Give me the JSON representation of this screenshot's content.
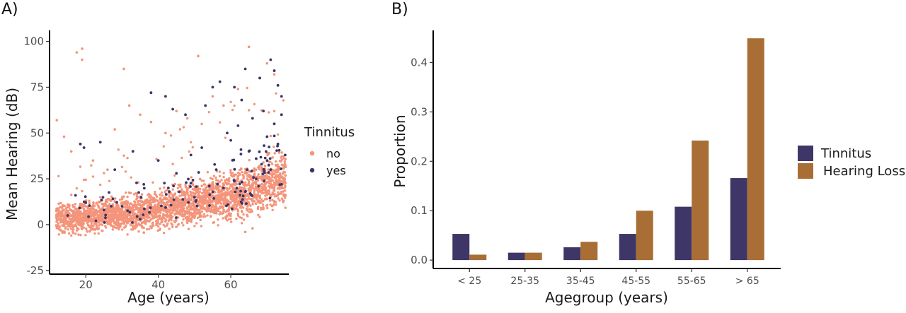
{
  "chart_data": [
    {
      "panel_label": "A)",
      "type": "scatter",
      "xlabel": "Age (years)",
      "ylabel": "Mean Hearing (dB)",
      "xlim": [
        10,
        76
      ],
      "ylim": [
        -27,
        106
      ],
      "xticks": [
        20,
        40,
        60
      ],
      "yticks": [
        -25,
        0,
        25,
        50,
        75,
        100
      ],
      "legend_title": "Tinnitus",
      "legend_position": "right",
      "grid": false,
      "colors": {
        "no": "#f4947a",
        "yes": "#3d3466"
      },
      "series": [
        {
          "name": "no",
          "color": "#f4947a",
          "points": [
            [
              17.5,
              94
            ],
            [
              19,
              96
            ],
            [
              19,
              90
            ],
            [
              30.5,
              85
            ],
            [
              51,
              92
            ],
            [
              65,
              97
            ],
            [
              32,
              65
            ],
            [
              35,
              60
            ],
            [
              45,
              62
            ],
            [
              55,
              70
            ],
            [
              58,
              65
            ],
            [
              62,
              74
            ],
            [
              68,
              80
            ],
            [
              70,
              88
            ],
            [
              72,
              82
            ],
            [
              12,
              57
            ],
            [
              14,
              48
            ],
            [
              16,
              40
            ],
            [
              22,
              35
            ],
            [
              26,
              30
            ],
            [
              28,
              52
            ],
            [
              38,
              56
            ],
            [
              42,
              50
            ],
            [
              48,
              58
            ],
            [
              64,
              -4
            ],
            [
              66,
              -2
            ]
          ]
        },
        {
          "name": "yes",
          "color": "#3d3466",
          "points": [
            [
              18.5,
              44
            ],
            [
              19.5,
              42
            ],
            [
              24,
              45
            ],
            [
              38,
              72
            ],
            [
              42,
              70
            ],
            [
              44,
              63
            ],
            [
              47.5,
              60
            ],
            [
              53,
              65
            ],
            [
              55,
              75
            ],
            [
              57,
              78
            ],
            [
              61,
              75
            ],
            [
              63,
              68
            ],
            [
              64,
              85
            ],
            [
              68,
              80
            ],
            [
              71,
              90
            ],
            [
              72,
              84
            ],
            [
              73,
              76
            ],
            [
              74,
              70
            ],
            [
              28,
              30
            ],
            [
              33,
              40
            ],
            [
              36,
              22
            ],
            [
              40,
              35
            ],
            [
              45,
              28
            ],
            [
              49,
              38
            ],
            [
              52,
              42
            ],
            [
              56,
              30
            ],
            [
              59,
              50
            ],
            [
              60,
              46
            ],
            [
              62,
              54
            ],
            [
              65,
              40
            ],
            [
              66,
              58
            ],
            [
              67,
              36
            ],
            [
              69,
              62
            ],
            [
              70,
              48
            ],
            [
              72,
              55
            ],
            [
              73,
              44
            ],
            [
              74,
              60
            ],
            [
              75,
              38
            ],
            [
              58,
              20
            ],
            [
              50,
              15
            ],
            [
              43,
              18
            ],
            [
              25,
              8
            ],
            [
              20,
              12
            ],
            [
              15,
              5
            ],
            [
              30,
              10
            ],
            [
              35,
              3
            ],
            [
              67,
              25
            ],
            [
              71,
              30
            ],
            [
              74,
              22
            ],
            [
              64,
              18
            ]
          ]
        }
      ],
      "trend_no": {
        "ages": [
          12,
          20,
          30,
          40,
          50,
          60,
          70,
          75
        ],
        "center": [
          3,
          4,
          6,
          8,
          12,
          16,
          22,
          26
        ],
        "spread": [
          7,
          7,
          8,
          9,
          10,
          12,
          13,
          14
        ]
      }
    },
    {
      "panel_label": "B)",
      "type": "bar",
      "xlabel": "Agegroup (years)",
      "ylabel": "Proportion",
      "ylim": [
        -0.017,
        0.465
      ],
      "yticks": [
        0.0,
        0.1,
        0.2,
        0.3,
        0.4
      ],
      "ytick_labels": [
        "0.0",
        "0.1",
        "0.2",
        "0.3",
        "0.4"
      ],
      "categories": [
        "< 25",
        "25-35",
        "35-45",
        "45-55",
        "55-65",
        "> 65"
      ],
      "series": [
        {
          "name": "Tinnitus",
          "color": "#3f3668",
          "values": [
            0.053,
            0.015,
            0.026,
            0.053,
            0.108,
            0.166
          ]
        },
        {
          "name": "Hearing Loss",
          "color": "#a86e35",
          "values": [
            0.011,
            0.015,
            0.037,
            0.1,
            0.242,
            0.449
          ]
        }
      ],
      "legend_position": "right",
      "grid": false
    }
  ]
}
